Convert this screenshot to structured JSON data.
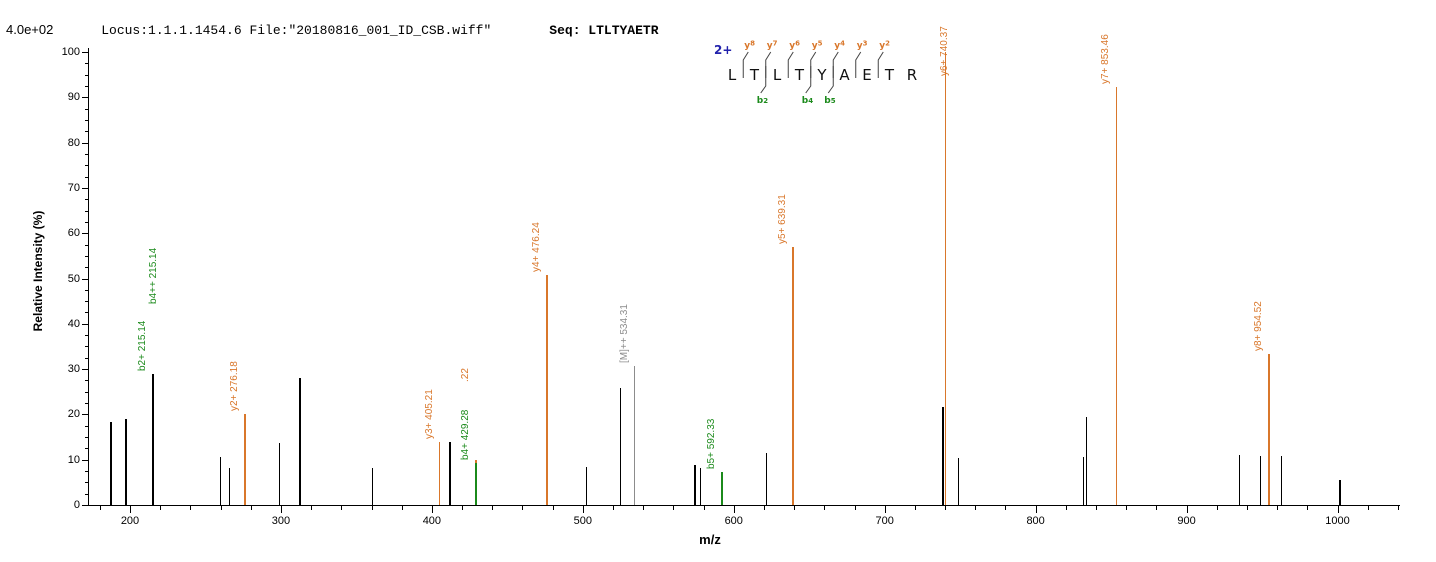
{
  "header": {
    "locus_file": "Locus:1.1.1.1454.6 File:\"20180816_001_ID_CSB.wiff\"",
    "seq_label": "Seq: LTLTYAETR"
  },
  "colors": {
    "header_blue": "#2222AC",
    "y_ion_orange": "#D9772B",
    "b_ion_green": "#1B8A1B",
    "unassigned_black": "#000000",
    "precursor_gray": "#8C8C8C",
    "marker_line": "#444444",
    "residue_black": "#111111"
  },
  "sequence": {
    "charge_label": "2+",
    "residues": [
      "L",
      "T",
      "L",
      "T",
      "Y",
      "A",
      "E",
      "T",
      "R"
    ],
    "y_ions": [
      {
        "gap": 1,
        "label": "y8"
      },
      {
        "gap": 2,
        "label": "y7"
      },
      {
        "gap": 3,
        "label": "y6"
      },
      {
        "gap": 4,
        "label": "y5"
      },
      {
        "gap": 5,
        "label": "y4"
      },
      {
        "gap": 6,
        "label": "y3"
      },
      {
        "gap": 7,
        "label": "y2"
      }
    ],
    "b_ions": [
      {
        "gap": 2,
        "label": "b2"
      },
      {
        "gap": 4,
        "label": "b4"
      },
      {
        "gap": 5,
        "label": "b5"
      }
    ]
  },
  "chart_data": {
    "type": "bar",
    "subtype": "mass-spectrum",
    "xlabel": "m/z",
    "ylabel": "Relative  Intensity (%)",
    "y_scale_label": "4.0e+02",
    "xlim": [
      172,
      1040
    ],
    "ylim": [
      0,
      100
    ],
    "x_major_ticks": [
      200,
      300,
      400,
      500,
      600,
      700,
      800,
      900,
      1000
    ],
    "x_minor_step": 20,
    "x_minor_range": [
      180,
      1040
    ],
    "y_major_ticks": [
      0,
      10,
      20,
      30,
      40,
      50,
      60,
      70,
      80,
      90,
      100
    ],
    "y_minor_step": 2.5,
    "grid": false,
    "peaks": [
      {
        "mz": 187.5,
        "intensity_pct": 18.3,
        "series": "unassigned"
      },
      {
        "mz": 197.5,
        "intensity_pct": 19.0,
        "series": "unassigned"
      },
      {
        "mz": 215.14,
        "intensity_pct": 29.0,
        "series": "unassigned",
        "labels": [
          {
            "text": "b2+ 215.14",
            "series": "b-ion"
          },
          {
            "text": "b4++ 215.14",
            "series": "b-ion",
            "dx": 11,
            "dy": -67
          }
        ]
      },
      {
        "mz": 260.0,
        "intensity_pct": 10.6,
        "series": "unassigned"
      },
      {
        "mz": 266.0,
        "intensity_pct": 8.1,
        "series": "unassigned"
      },
      {
        "mz": 276.18,
        "intensity_pct": 20.0,
        "series": "y-ion",
        "labels": [
          {
            "text": "y2+ 276.18"
          }
        ]
      },
      {
        "mz": 299.0,
        "intensity_pct": 13.7,
        "series": "unassigned"
      },
      {
        "mz": 312.5,
        "intensity_pct": 28.0,
        "series": "unassigned"
      },
      {
        "mz": 360.6,
        "intensity_pct": 8.1,
        "series": "unassigned"
      },
      {
        "mz": 405.21,
        "intensity_pct": 14.0,
        "series": "y-ion",
        "labels": [
          {
            "text": "y3+ 405.21"
          }
        ]
      },
      {
        "mz": 412.0,
        "intensity_pct": 14.0,
        "series": "unassigned"
      },
      {
        "mz": 429.22,
        "intensity_pct": 10.0,
        "series": "y-ion",
        "labels": [
          {
            "text": ".22",
            "dy": -75
          }
        ]
      },
      {
        "mz": 429.28,
        "intensity_pct": 9.3,
        "series": "b-ion",
        "labels": [
          {
            "text": "b4+ 429.28"
          }
        ]
      },
      {
        "mz": 476.24,
        "intensity_pct": 50.8,
        "series": "y-ion",
        "labels": [
          {
            "text": "y4+ 476.24"
          }
        ]
      },
      {
        "mz": 502.6,
        "intensity_pct": 8.4,
        "series": "unassigned"
      },
      {
        "mz": 525.0,
        "intensity_pct": 25.8,
        "series": "unassigned"
      },
      {
        "mz": 534.31,
        "intensity_pct": 30.7,
        "series": "precursor",
        "labels": [
          {
            "text": "[M]++ 534.31"
          }
        ]
      },
      {
        "mz": 574.2,
        "intensity_pct": 8.8,
        "series": "unassigned"
      },
      {
        "mz": 578.1,
        "intensity_pct": 8.2,
        "series": "unassigned"
      },
      {
        "mz": 592.33,
        "intensity_pct": 7.3,
        "series": "b-ion",
        "labels": [
          {
            "text": "b5+ 592.33"
          }
        ]
      },
      {
        "mz": 621.8,
        "intensity_pct": 11.5,
        "series": "unassigned"
      },
      {
        "mz": 639.31,
        "intensity_pct": 57.0,
        "series": "y-ion",
        "labels": [
          {
            "text": "y5+ 639.31"
          }
        ]
      },
      {
        "mz": 738.6,
        "intensity_pct": 21.7,
        "series": "unassigned"
      },
      {
        "mz": 740.37,
        "intensity_pct": 100.0,
        "series": "y-ion",
        "labels": [
          {
            "text": "y6+ 740.37",
            "dx": 9,
            "dy": 27
          }
        ]
      },
      {
        "mz": 749.0,
        "intensity_pct": 10.4,
        "series": "unassigned"
      },
      {
        "mz": 831.8,
        "intensity_pct": 10.7,
        "series": "unassigned"
      },
      {
        "mz": 833.8,
        "intensity_pct": 19.5,
        "series": "unassigned"
      },
      {
        "mz": 853.46,
        "intensity_pct": 92.3,
        "series": "y-ion",
        "labels": [
          {
            "text": "y7+ 853.46"
          }
        ]
      },
      {
        "mz": 935.0,
        "intensity_pct": 11.0,
        "series": "unassigned"
      },
      {
        "mz": 948.9,
        "intensity_pct": 10.9,
        "series": "unassigned"
      },
      {
        "mz": 954.52,
        "intensity_pct": 33.3,
        "series": "y-ion",
        "labels": [
          {
            "text": "y8+ 954.52"
          }
        ]
      },
      {
        "mz": 962.9,
        "intensity_pct": 10.8,
        "series": "unassigned"
      },
      {
        "mz": 1001.8,
        "intensity_pct": 5.5,
        "series": "unassigned"
      }
    ]
  }
}
